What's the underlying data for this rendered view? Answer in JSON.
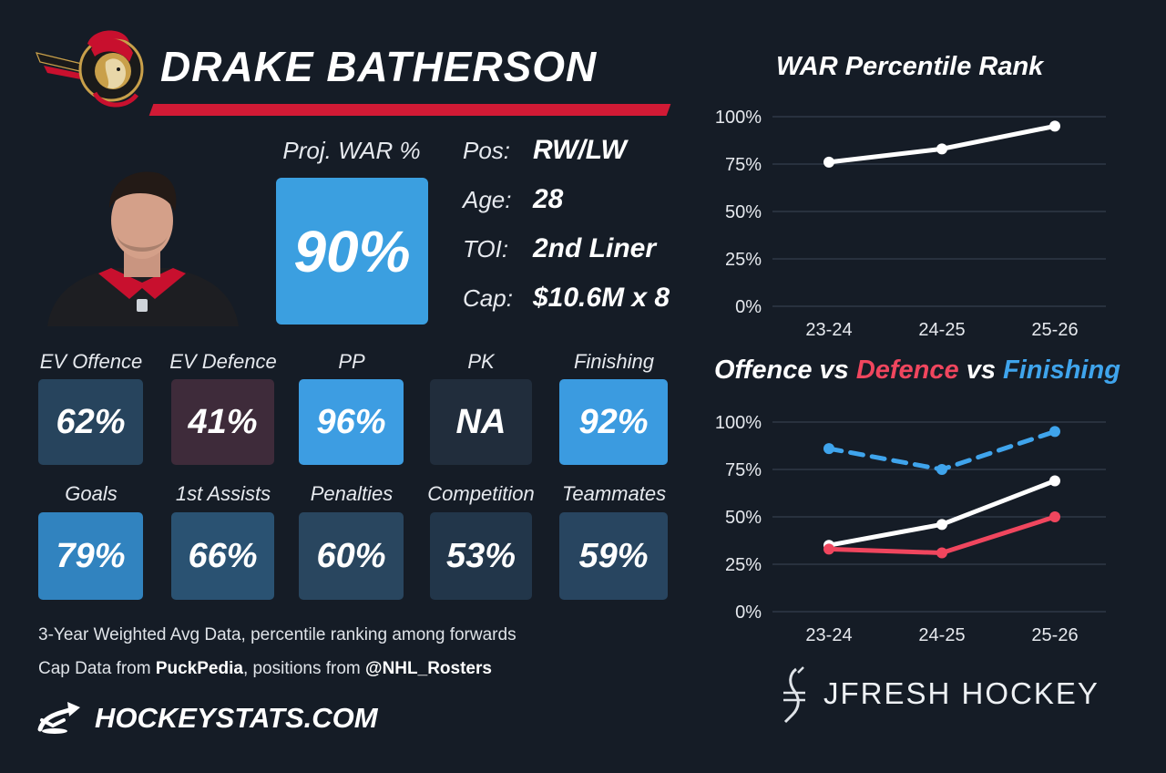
{
  "player": {
    "name": "DRAKE BATHERSON",
    "team_logo": "ottawa-senators-logo",
    "headshot": "player-headshot"
  },
  "projected_war": {
    "label": "Proj. WAR %",
    "value": "90%",
    "color": "#3b9fe0"
  },
  "info": {
    "pos_label": "Pos:",
    "pos": "RW/LW",
    "age_label": "Age:",
    "age": "28",
    "toi_label": "TOI:",
    "toi": "2nd Liner",
    "cap_label": "Cap:",
    "cap": "$10.6M x 8"
  },
  "stats": [
    {
      "label": "EV Offence",
      "value": "62%",
      "color": "#27445d"
    },
    {
      "label": "EV Defence",
      "value": "41%",
      "color": "#3e2b3a"
    },
    {
      "label": "PP",
      "value": "96%",
      "color": "#3d9de2"
    },
    {
      "label": "PK",
      "value": "NA",
      "color": "#212d3c"
    },
    {
      "label": "Finishing",
      "value": "92%",
      "color": "#3b9be0"
    },
    {
      "label": "Goals",
      "value": "79%",
      "color": "#3183bf"
    },
    {
      "label": "1st Assists",
      "value": "66%",
      "color": "#2a5272"
    },
    {
      "label": "Penalties",
      "value": "60%",
      "color": "#29465f"
    },
    {
      "label": "Competition",
      "value": "53%",
      "color": "#22364a"
    },
    {
      "label": "Teammates",
      "value": "59%",
      "color": "#284560"
    }
  ],
  "footer": {
    "line1": "3-Year Weighted Avg Data, percentile ranking among forwards",
    "line2_prefix": "Cap Data from ",
    "line2_source": "PuckPedia",
    "line2_mid": ", positions from ",
    "line2_handle": "@NHL_Rosters",
    "site": "HOCKEYSTATS.COM",
    "brand": "JFRESH HOCKEY"
  },
  "colors": {
    "background": "#151c26",
    "accent_red": "#d11a35",
    "offence": "#ffffff",
    "defence": "#f0465e",
    "finishing": "#3fa4ec",
    "grid": "#3b4656"
  },
  "chart_data": [
    {
      "type": "line",
      "title": "WAR Percentile Rank",
      "categories": [
        "23-24",
        "24-25",
        "25-26"
      ],
      "yticks": [
        "100%",
        "75%",
        "50%",
        "25%",
        "0%"
      ],
      "ylim": [
        0,
        100
      ],
      "grid": true,
      "series": [
        {
          "values": [
            76,
            83,
            95
          ],
          "color": "#ffffff",
          "style": "solid"
        }
      ]
    },
    {
      "type": "line",
      "title_parts": [
        "Offence",
        " vs ",
        "Defence",
        " vs ",
        "Finishing"
      ],
      "categories": [
        "23-24",
        "24-25",
        "25-26"
      ],
      "yticks": [
        "100%",
        "75%",
        "50%",
        "25%",
        "0%"
      ],
      "ylim": [
        0,
        100
      ],
      "grid": true,
      "series": [
        {
          "name": "Finishing",
          "values": [
            86,
            75,
            95
          ],
          "color": "#3fa4ec",
          "style": "dashed"
        },
        {
          "name": "Offence",
          "values": [
            35,
            46,
            69
          ],
          "color": "#ffffff",
          "style": "solid"
        },
        {
          "name": "Defence",
          "values": [
            33,
            31,
            50
          ],
          "color": "#f0465e",
          "style": "solid"
        }
      ]
    }
  ]
}
